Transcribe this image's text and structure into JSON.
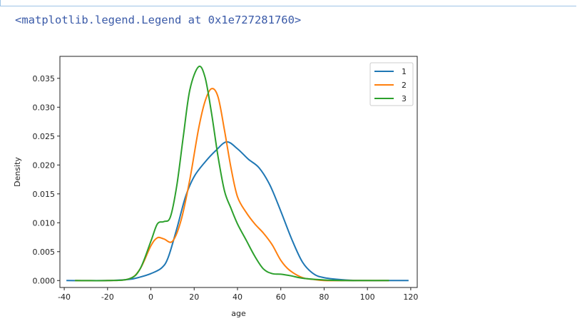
{
  "output_repr": "<matplotlib.legend.Legend at 0x1e727281760>",
  "chart_data": {
    "type": "line",
    "xlabel": "age",
    "ylabel": "Density",
    "xlim": [
      -42,
      123
    ],
    "ylim": [
      -0.0012,
      0.0388
    ],
    "xticks": [
      -40,
      -20,
      0,
      20,
      40,
      60,
      80,
      100,
      120
    ],
    "yticks": [
      0.0,
      0.005,
      0.01,
      0.015,
      0.02,
      0.025,
      0.03,
      0.035
    ],
    "ytick_labels": [
      "0.000",
      "0.005",
      "0.010",
      "0.015",
      "0.020",
      "0.025",
      "0.030",
      "0.035"
    ],
    "legend_position": "top-right",
    "grid": false,
    "series": [
      {
        "name": "1",
        "color": "#1f77b4",
        "x": [
          -39,
          -20,
          -10,
          -5,
          0,
          5,
          8,
          12,
          16,
          20,
          25,
          30,
          35,
          40,
          45,
          50,
          55,
          60,
          65,
          70,
          75,
          80,
          90,
          100,
          110,
          119
        ],
        "y": [
          0.0,
          0.0,
          0.0002,
          0.0006,
          0.0012,
          0.0022,
          0.004,
          0.009,
          0.0145,
          0.018,
          0.0205,
          0.0225,
          0.024,
          0.0228,
          0.021,
          0.0195,
          0.0165,
          0.012,
          0.0072,
          0.0032,
          0.0012,
          0.0005,
          0.0001,
          0.0,
          0.0,
          0.0
        ]
      },
      {
        "name": "2",
        "color": "#ff7f0e",
        "x": [
          -35,
          -20,
          -10,
          -5,
          0,
          3,
          6,
          10,
          14,
          18,
          22,
          25,
          28,
          31,
          34,
          37,
          40,
          44,
          48,
          52,
          56,
          60,
          64,
          70,
          75,
          80,
          90,
          100,
          110
        ],
        "y": [
          0.0,
          0.0,
          0.0003,
          0.002,
          0.006,
          0.0074,
          0.0072,
          0.0068,
          0.0105,
          0.0175,
          0.0262,
          0.031,
          0.0332,
          0.0318,
          0.026,
          0.0195,
          0.0145,
          0.0118,
          0.0098,
          0.0082,
          0.0062,
          0.0035,
          0.0018,
          0.0005,
          0.0002,
          0.0,
          0.0,
          0.0,
          0.0
        ]
      },
      {
        "name": "3",
        "color": "#2ca02c",
        "x": [
          -35,
          -20,
          -10,
          -5,
          0,
          3,
          6,
          9,
          12,
          15,
          18,
          22,
          25,
          28,
          31,
          34,
          37,
          40,
          44,
          48,
          52,
          56,
          60,
          65,
          70,
          80,
          90,
          100,
          110
        ],
        "y": [
          0.0,
          0.0,
          0.0003,
          0.002,
          0.0068,
          0.0098,
          0.0102,
          0.011,
          0.0165,
          0.025,
          0.033,
          0.037,
          0.0352,
          0.029,
          0.0215,
          0.0155,
          0.0125,
          0.0098,
          0.007,
          0.0042,
          0.002,
          0.0012,
          0.0011,
          0.0008,
          0.0004,
          0.0001,
          0.0,
          0.0,
          0.0
        ]
      }
    ]
  }
}
